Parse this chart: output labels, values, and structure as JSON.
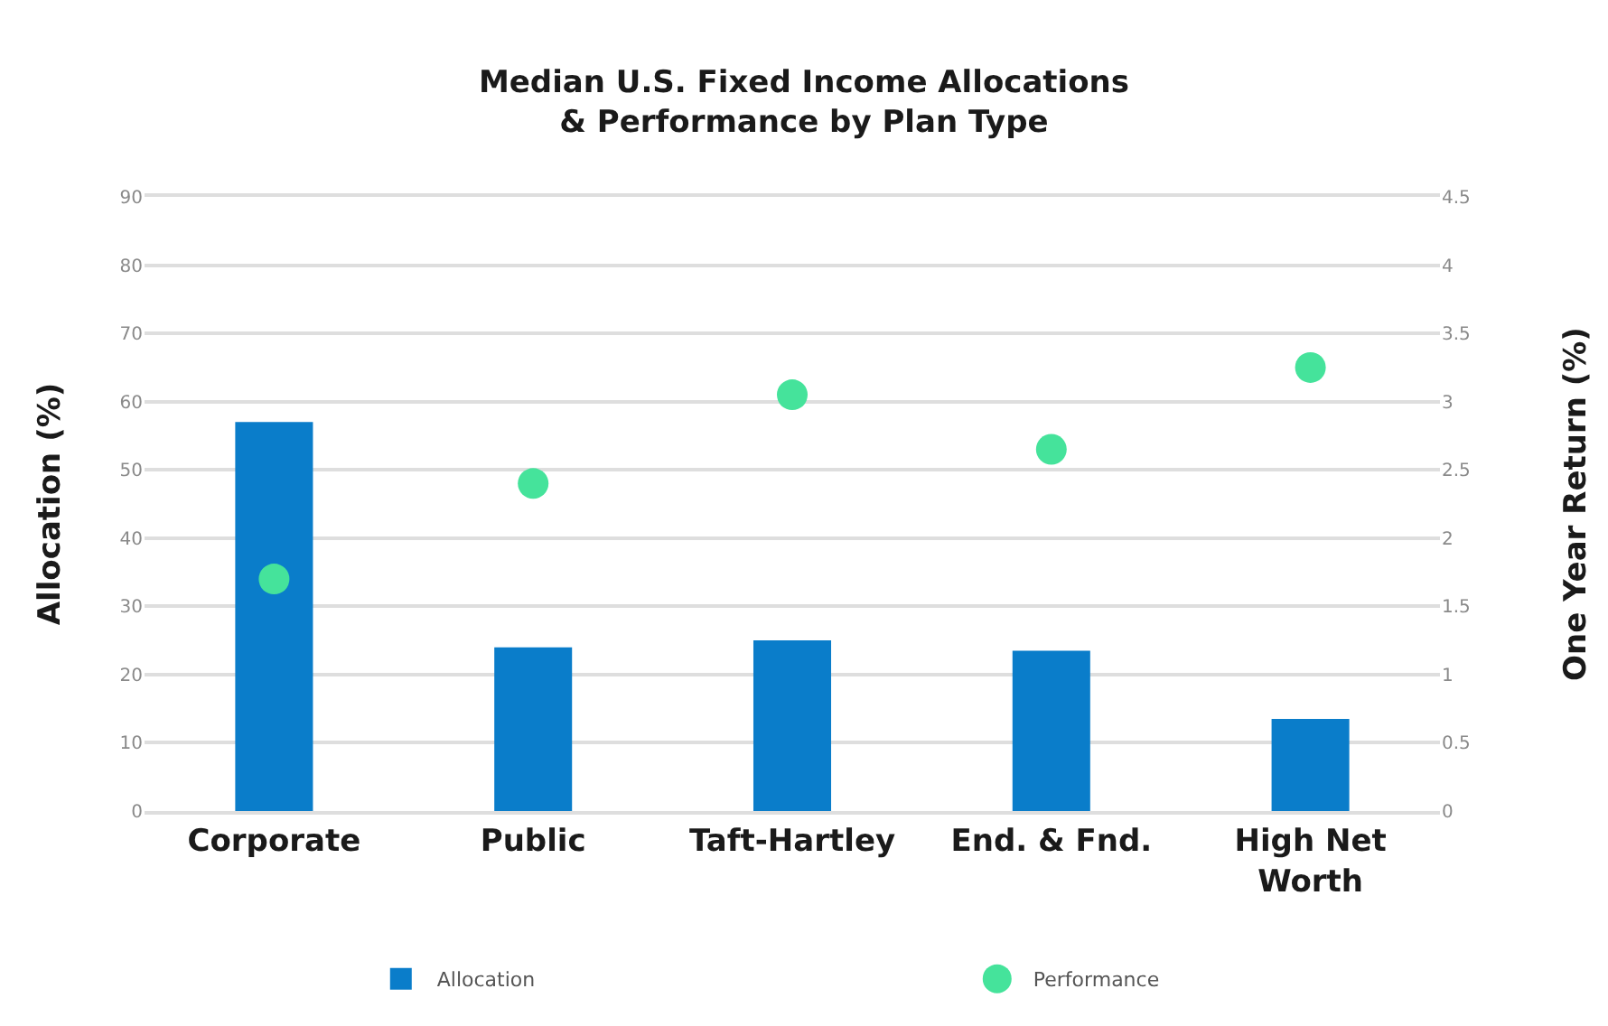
{
  "chart_data": {
    "type": "bar",
    "title": "Median U.S. Fixed Income Allocations\n& Performance by Plan Type",
    "ylabel": "Allocation (%)",
    "y2label": "One Year Return (%)",
    "categories": [
      "Corporate",
      "Public",
      "Taft-Hartley",
      "End. & Fnd.",
      "High Net Worth"
    ],
    "series": [
      {
        "name": "Allocation",
        "color": "#0a7dca",
        "values": [
          57,
          24,
          25,
          23.5,
          13.5
        ]
      },
      {
        "name": "Performance",
        "type": "scatter",
        "axis": "y2",
        "marker": "circle",
        "color": "#45e39b",
        "values": [
          1.7,
          2.4,
          3.05,
          2.65,
          3.25
        ]
      }
    ],
    "ylim": [
      0,
      90
    ],
    "yticks": [
      0,
      10,
      20,
      30,
      40,
      50,
      60,
      70,
      80,
      90
    ],
    "y2lim": [
      0,
      4.5
    ],
    "y2ticks": [
      0,
      0.5,
      1,
      1.5,
      2,
      2.5,
      3,
      3.5,
      4,
      4.5
    ],
    "grid": "y",
    "legend": "bottom"
  }
}
